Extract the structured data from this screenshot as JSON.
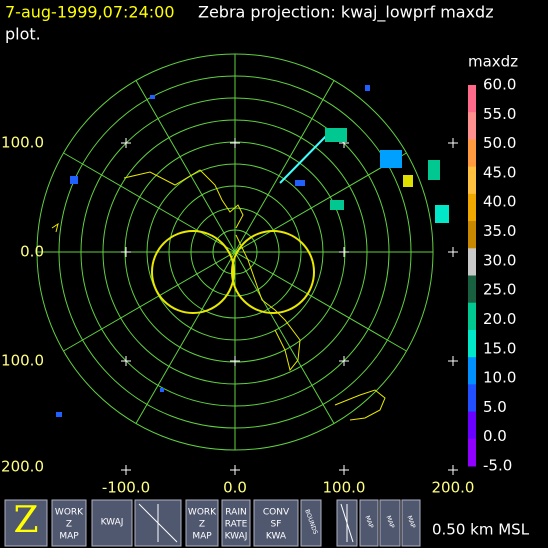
{
  "header": {
    "timestamp": "7-aug-1999,07:24:00",
    "title": "Zebra projection: kwaj_lowprf maxdz",
    "title_cont": "plot."
  },
  "plot": {
    "y_labels": [
      "100.0",
      "0.0",
      "100.0",
      "200.0"
    ],
    "x_labels": [
      "-100.0",
      "0.0",
      "100.0",
      "200.0"
    ]
  },
  "colorbar": {
    "title": "maxdz",
    "labels": [
      "60.0",
      "55.0",
      "50.0",
      "45.0",
      "40.0",
      "35.0",
      "30.0",
      "25.0",
      "20.0",
      "15.0",
      "10.0",
      "5.0",
      "0.0",
      "-5.0"
    ],
    "colors": [
      "#ff6a8a",
      "#ff9090",
      "#ff9a40",
      "#ffc040",
      "#f0a800",
      "#c88800",
      "#c8c8c8",
      "#186040",
      "#00c890",
      "#00e8c8",
      "#0090ff",
      "#2050ff",
      "#6a00ff",
      "#9000ff"
    ]
  },
  "toolbar": {
    "buttons": [
      {
        "lines": [
          "Z"
        ]
      },
      {
        "lines": [
          "WORK",
          "Z",
          "MAP"
        ]
      },
      {
        "lines": [
          "KWAJ"
        ]
      },
      {
        "lines": [
          "WORK",
          "Z",
          "MAP"
        ]
      },
      {
        "lines": [
          "RAIN",
          "RATE",
          "KWAJ"
        ]
      },
      {
        "lines": [
          "CONV",
          "SF",
          "KWA"
        ]
      },
      {
        "lines": [
          "BOUNDS"
        ]
      },
      {
        "lines": [
          "MAP"
        ]
      },
      {
        "lines": [
          "MAP"
        ]
      },
      {
        "lines": [
          "MAP"
        ]
      }
    ],
    "altitude": "0.50 km MSL"
  }
}
